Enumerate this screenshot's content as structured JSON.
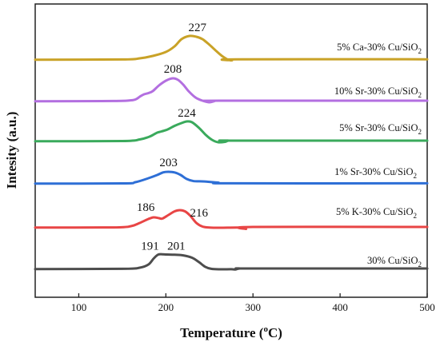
{
  "chart_data": {
    "type": "line",
    "xlabel": "Temperature (oC)",
    "xlabel_parts": {
      "pre": "Temperature (",
      "sup": "o",
      "post": "C)"
    },
    "ylabel": "Intesity (a.u.)",
    "xlim": [
      50,
      500
    ],
    "xticks": [
      "100",
      "200",
      "300",
      "400",
      "500"
    ],
    "xtick_values": [
      100,
      200,
      300,
      400,
      500
    ],
    "grid": false,
    "series": [
      {
        "name": "30% Cu/SiO2",
        "name_parts": {
          "pre": "30% Cu/SiO",
          "sub": "2"
        },
        "color": "#4d4d4d",
        "offset": 0,
        "peaks": [
          "191",
          "201"
        ],
        "peak_values": [
          191,
          201
        ],
        "x": [
          50,
          150,
          170,
          180,
          186,
          191,
          196,
          201,
          210,
          220,
          230,
          238,
          245,
          252,
          262,
          275,
          280,
          285,
          300,
          500
        ],
        "y": [
          0.3,
          0.6,
          2.0,
          6.0,
          13.5,
          18.3,
          18.8,
          18.5,
          18.2,
          17.4,
          14.5,
          9.0,
          3.2,
          0.6,
          0.0,
          0.1,
          -0.2,
          1.0,
          1.0,
          1.0
        ]
      },
      {
        "name": "5% K-30% Cu/SiO2",
        "name_parts": {
          "pre": "5% K-30% Cu/SiO",
          "sub": "2"
        },
        "color": "#e84545",
        "offset": 52,
        "peaks": [
          "186",
          "216"
        ],
        "peak_values": [
          186,
          216
        ],
        "x": [
          50,
          140,
          160,
          170,
          180,
          186,
          192,
          196,
          203,
          210,
          216,
          222,
          228,
          235,
          242,
          250,
          262,
          285,
          292,
          300,
          500
        ],
        "y": [
          0.2,
          0.4,
          2.0,
          6.0,
          11.0,
          13.0,
          12.0,
          11.5,
          16.0,
          20.5,
          22.0,
          20.5,
          15.0,
          6.0,
          1.5,
          0.3,
          0.0,
          0.2,
          -1.5,
          1.0,
          1.0
        ]
      },
      {
        "name": "1% Sr-30% Cu/SiO2",
        "name_parts": {
          "pre": "1% Sr-30% Cu/SiO",
          "sub": "2"
        },
        "color": "#2e6fd6",
        "offset": 107,
        "peaks": [
          "203"
        ],
        "peak_values": [
          203
        ],
        "x": [
          50,
          150,
          165,
          180,
          190,
          197,
          203,
          210,
          217,
          224,
          232,
          242,
          260,
          275,
          500
        ],
        "y": [
          0.2,
          0.5,
          2.0,
          7.0,
          11.0,
          14.3,
          15.0,
          14.2,
          11.0,
          6.0,
          3.3,
          3.0,
          1.5,
          0.6,
          0.6
        ]
      },
      {
        "name": "5% Sr-30% Cu/SiO2",
        "name_parts": {
          "pre": "5% Sr-30% Cu/SiO",
          "sub": "2"
        },
        "color": "#3aaa5c",
        "offset": 160,
        "peaks": [
          "224"
        ],
        "peak_values": [
          224
        ],
        "x": [
          50,
          150,
          170,
          180,
          185,
          190,
          195,
          202,
          210,
          218,
          224,
          230,
          238,
          246,
          253,
          260,
          268,
          272,
          280,
          500
        ],
        "y": [
          0.2,
          0.5,
          2.5,
          5.5,
          8.0,
          11.0,
          12.5,
          15.0,
          19.5,
          23.0,
          25.0,
          24.0,
          17.0,
          8.0,
          2.0,
          -1.0,
          -0.5,
          1.0,
          1.0,
          1.0
        ]
      },
      {
        "name": "10% Sr-30% Cu/SiO2",
        "name_parts": {
          "pre": "10% Sr-30% Cu/SiO",
          "sub": "2"
        },
        "color": "#b36fe0",
        "offset": 210,
        "peaks": [
          "208"
        ],
        "peak_values": [
          208
        ],
        "x": [
          50,
          140,
          160,
          166,
          170,
          175,
          180,
          185,
          192,
          200,
          208,
          214,
          220,
          226,
          234,
          242,
          250,
          256,
          262,
          500
        ],
        "y": [
          0.3,
          0.6,
          1.5,
          3.0,
          6.0,
          9.0,
          10.5,
          13.0,
          20.0,
          26.0,
          29.0,
          27.0,
          21.0,
          13.0,
          5.0,
          1.0,
          -1.0,
          0.5,
          1.0,
          1.0
        ]
      },
      {
        "name": "5% Ca-30% Cu/SiO2",
        "name_parts": {
          "pre": "5% Ca-30% Cu/SiO",
          "sub": "2"
        },
        "color": "#c9a227",
        "offset": 262,
        "peaks": [
          "227"
        ],
        "peak_values": [
          227
        ],
        "x": [
          50,
          150,
          170,
          185,
          200,
          210,
          218,
          227,
          235,
          242,
          250,
          258,
          265,
          272,
          276,
          282,
          500
        ],
        "y": [
          0.3,
          0.6,
          2.0,
          5.0,
          10.0,
          17.0,
          26.0,
          30.0,
          29.0,
          26.0,
          19.0,
          11.0,
          4.5,
          0.0,
          -0.5,
          0.8,
          0.8
        ]
      }
    ]
  }
}
